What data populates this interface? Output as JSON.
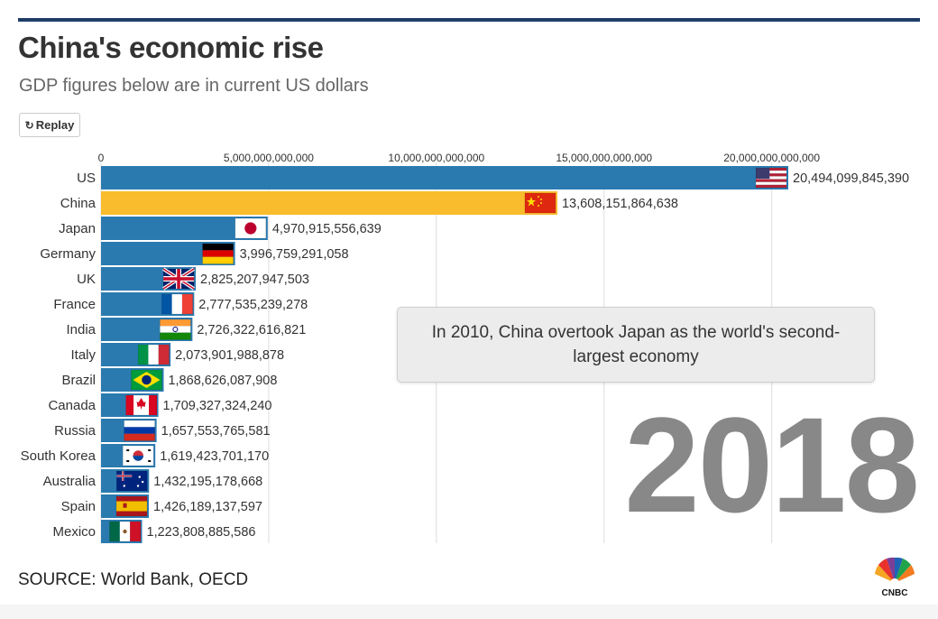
{
  "header": {
    "title": "China's economic rise",
    "subtitle": "GDP figures below are in current US dollars"
  },
  "controls": {
    "replay_label": "Replay"
  },
  "annotation": {
    "text": "In 2010, China overtook Japan as the world's second-largest economy"
  },
  "year": "2018",
  "footer": {
    "source": "SOURCE: World Bank, OECD",
    "logo_text": "CNBC"
  },
  "colors": {
    "title_rule": "#1f3d67",
    "bar_default": "#2a7ab0",
    "bar_highlight": "#f9bc2c",
    "grid": "#dddddd",
    "year": "#888888"
  },
  "chart_data": {
    "type": "bar",
    "orientation": "horizontal",
    "title": "China's economic rise",
    "subtitle": "GDP figures below are in current US dollars",
    "xlabel": "",
    "ylabel": "",
    "xlim": [
      0,
      22000000000000
    ],
    "grid": true,
    "legend": "none",
    "highlight": "China",
    "ticks": [
      {
        "value": 0,
        "label": "0"
      },
      {
        "value": 5000000000000,
        "label": "5,000,000,000,000"
      },
      {
        "value": 10000000000000,
        "label": "10,000,000,000,000"
      },
      {
        "value": 15000000000000,
        "label": "15,000,000,000,000"
      },
      {
        "value": 20000000000000,
        "label": "20,000,000,000,000"
      }
    ],
    "categories": [
      "US",
      "China",
      "Japan",
      "Germany",
      "UK",
      "France",
      "India",
      "Italy",
      "Brazil",
      "Canada",
      "Russia",
      "South Korea",
      "Australia",
      "Spain",
      "Mexico"
    ],
    "values": [
      20494099845390,
      13608151864638,
      4970915556639,
      3996759291058,
      2825207947503,
      2777535239278,
      2726322616821,
      2073901988878,
      1868626087908,
      1709327324240,
      1657553765581,
      1619423701170,
      1432195178668,
      1426189137597,
      1223808885586
    ],
    "value_labels": [
      "20,494,099,845,390",
      "13,608,151,864,638",
      "4,970,915,556,639",
      "3,996,759,291,058",
      "2,825,207,947,503",
      "2,777,535,239,278",
      "2,726,322,616,821",
      "2,073,901,988,878",
      "1,868,626,087,908",
      "1,709,327,324,240",
      "1,657,553,765,581",
      "1,619,423,701,170",
      "1,432,195,178,668",
      "1,426,189,137,597",
      "1,223,808,885,586"
    ],
    "flags": [
      "us-flag",
      "china-flag",
      "japan-flag",
      "germany-flag",
      "uk-flag",
      "france-flag",
      "india-flag",
      "italy-flag",
      "brazil-flag",
      "canada-flag",
      "russia-flag",
      "south-korea-flag",
      "australia-flag",
      "spain-flag",
      "mexico-flag"
    ]
  }
}
